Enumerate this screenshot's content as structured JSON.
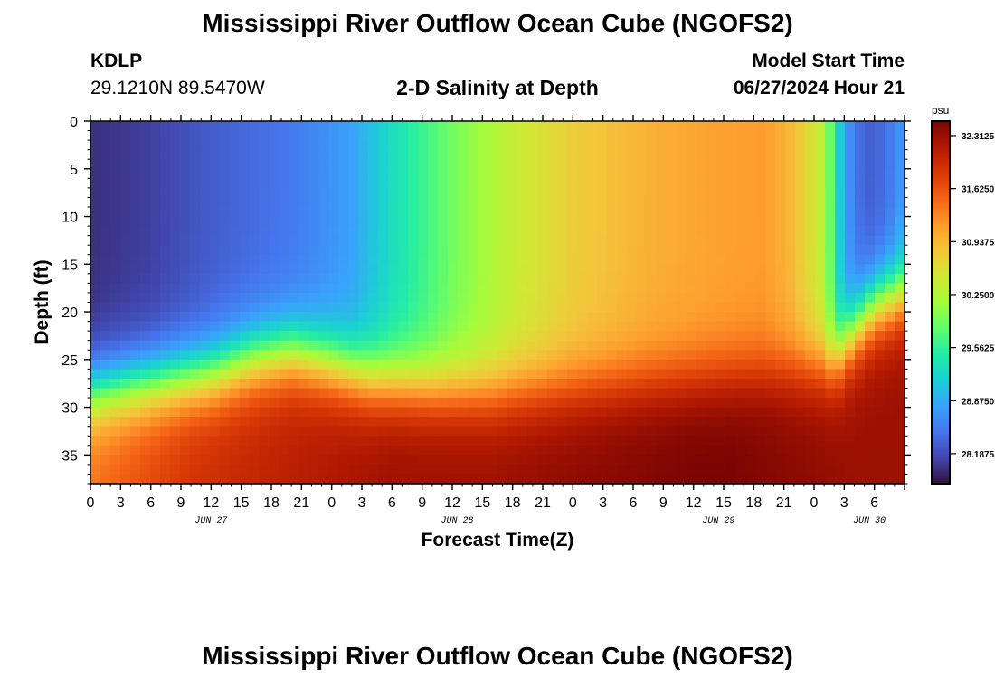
{
  "header": {
    "title": "Mississippi River Outflow Ocean Cube (NGOFS2)",
    "station_id": "KDLP",
    "station_coords": "29.1210N  89.5470W",
    "subtitle": "2-D Salinity at Depth",
    "start_label": "Model Start Time",
    "start_value": "06/27/2024 Hour 21"
  },
  "footer": {
    "title": "Mississippi River Outflow Ocean Cube (NGOFS2)"
  },
  "chart_data": {
    "type": "heatmap",
    "title": "2-D Salinity at Depth",
    "xlabel": "Forecast Time(Z)",
    "ylabel": "Depth (ft)",
    "x_hours_range": [
      0,
      81
    ],
    "y_depth_range": [
      0,
      38
    ],
    "x_tick_labels": [
      "0",
      "3",
      "6",
      "9",
      "12",
      "15",
      "18",
      "21",
      "0",
      "3",
      "6",
      "9",
      "12",
      "15",
      "18",
      "21",
      "0",
      "3",
      "6",
      "9",
      "12",
      "15",
      "18",
      "21",
      "0",
      "3",
      "6"
    ],
    "y_ticks": [
      0,
      5,
      10,
      15,
      20,
      25,
      30,
      35
    ],
    "date_labels": [
      {
        "text": "JUN 27",
        "hour": 12
      },
      {
        "text": "JUN 28",
        "hour": 36.5
      },
      {
        "text": "JUN 29",
        "hour": 62.5
      },
      {
        "text": "JUN 30",
        "hour": 77.5
      }
    ],
    "colorbar": {
      "unit": "psu",
      "range": [
        27.8,
        32.5
      ],
      "tick_labels": [
        "32.3125",
        "31.6250",
        "30.9375",
        "30.2500",
        "29.5625",
        "28.8750",
        "28.1875"
      ],
      "colors": [
        "#30123b",
        "#4145ab",
        "#4675ed",
        "#39a2fc",
        "#1bcfd4",
        "#24eca6",
        "#61fc6c",
        "#a4fc3b",
        "#d1e834",
        "#f3c63a",
        "#fe9b2d",
        "#f36315",
        "#d93806",
        "#b11901",
        "#7a0403"
      ]
    },
    "salinity_model": {
      "surface_profile": [
        [
          0,
          28.0
        ],
        [
          6,
          28.1
        ],
        [
          12,
          28.3
        ],
        [
          20,
          28.5
        ],
        [
          26,
          28.8
        ],
        [
          30,
          29.3
        ],
        [
          36,
          29.9
        ],
        [
          42,
          30.4
        ],
        [
          48,
          30.75
        ],
        [
          56,
          31.0
        ],
        [
          62,
          31.1
        ],
        [
          67,
          31.15
        ],
        [
          70,
          30.9
        ],
        [
          73,
          30.3
        ],
        [
          75,
          28.8
        ],
        [
          77,
          28.3
        ],
        [
          79,
          28.4
        ],
        [
          81,
          28.8
        ]
      ],
      "deep_profile": [
        [
          0,
          31.4
        ],
        [
          10,
          31.9
        ],
        [
          20,
          32.1
        ],
        [
          30,
          32.3
        ],
        [
          40,
          32.3
        ],
        [
          50,
          32.4
        ],
        [
          60,
          32.5
        ],
        [
          64,
          32.5
        ],
        [
          70,
          32.4
        ],
        [
          76,
          32.3
        ],
        [
          81,
          32.3
        ]
      ],
      "mix_depth": [
        [
          0,
          28.5
        ],
        [
          6,
          27.5
        ],
        [
          12,
          26.5
        ],
        [
          16,
          25.0
        ],
        [
          20,
          24.3
        ],
        [
          24,
          25.5
        ],
        [
          28,
          27.0
        ],
        [
          34,
          28.0
        ],
        [
          40,
          28.5
        ],
        [
          46,
          28.0
        ],
        [
          52,
          27.5
        ],
        [
          58,
          27.0
        ],
        [
          64,
          26.5
        ],
        [
          70,
          26.0
        ],
        [
          74,
          25.5
        ],
        [
          76,
          22.0
        ],
        [
          78,
          19.5
        ],
        [
          81,
          18.0
        ]
      ],
      "mix_width": 2.2
    }
  }
}
